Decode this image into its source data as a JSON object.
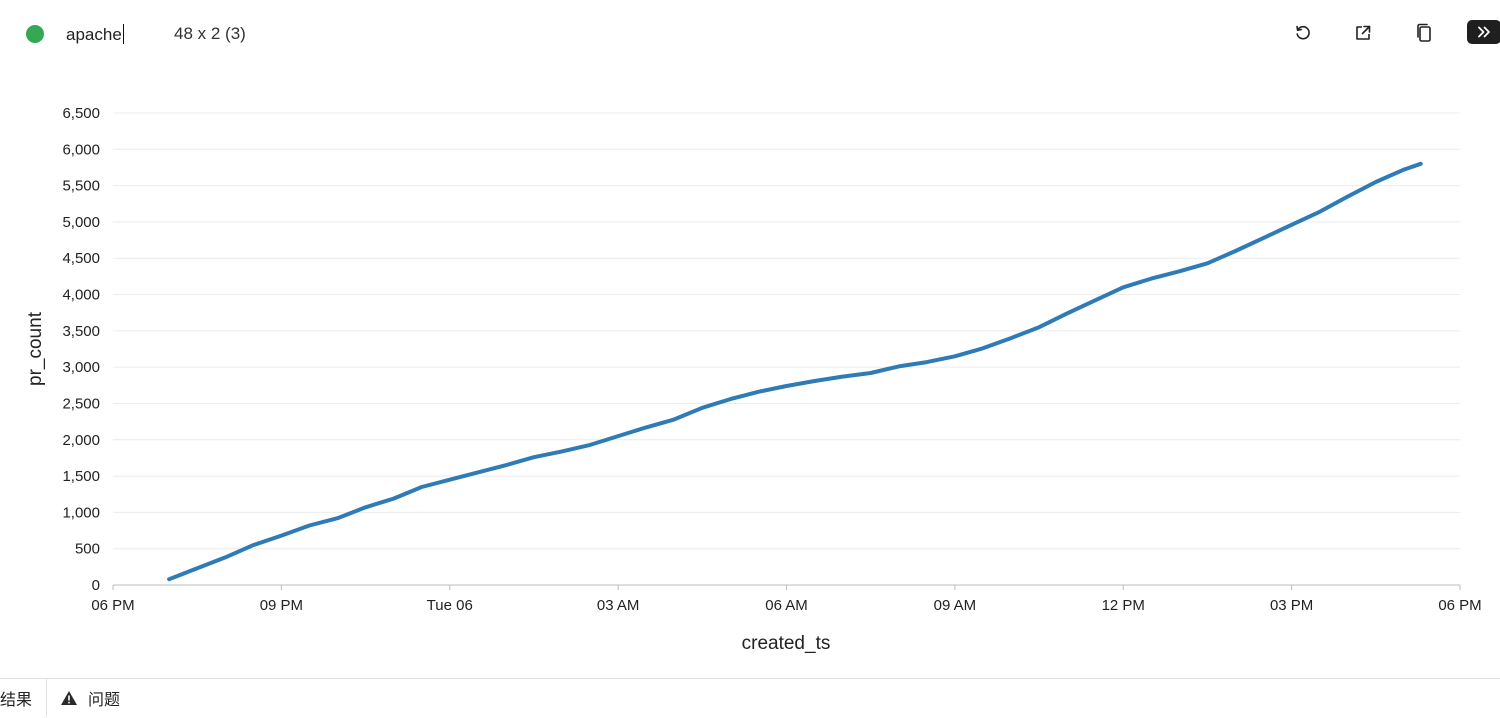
{
  "header": {
    "query_name": "apache",
    "dimensions": "48 x 2 (3)",
    "status_color": "#34a853",
    "icons": [
      "refresh-icon",
      "open-external-icon",
      "copy-icon",
      "expand-panel-icon"
    ]
  },
  "footer": {
    "tabs": [
      {
        "label": "结果",
        "icon": ""
      },
      {
        "label": "问题",
        "icon": "warning-icon"
      }
    ]
  },
  "chart_data": {
    "type": "line",
    "xlabel": "created_ts",
    "ylabel": "pr_count",
    "x_ticks": [
      "06 PM",
      "09 PM",
      "Tue 06",
      "03 AM",
      "06 AM",
      "09 AM",
      "12 PM",
      "03 PM",
      "06 PM"
    ],
    "x_domain_hours": [
      0,
      24
    ],
    "y_ticks": [
      0,
      500,
      1000,
      1500,
      2000,
      2500,
      3000,
      3500,
      4000,
      4500,
      5000,
      5500,
      6000,
      6500
    ],
    "ylim": [
      0,
      6500
    ],
    "grid": "horizontal",
    "line_color": "#2e7bb6",
    "series": [
      {
        "x_hours": [
          1.0,
          1.5,
          2.0,
          2.5,
          3.0,
          3.5,
          4.0,
          4.5,
          5.0,
          5.5,
          6.0,
          6.5,
          7.0,
          7.5,
          8.0,
          8.5,
          9.0,
          9.5,
          10.0,
          10.5,
          11.0,
          11.5,
          12.0,
          12.5,
          13.0,
          13.5,
          14.0,
          14.5,
          15.0,
          15.5,
          16.0,
          16.5,
          17.0,
          17.5,
          18.0,
          18.5,
          19.0,
          19.5,
          20.0,
          20.5,
          21.0,
          21.5,
          22.0,
          22.5,
          23.0,
          23.3
        ],
        "values": [
          80,
          230,
          380,
          550,
          680,
          820,
          920,
          1070,
          1190,
          1350,
          1450,
          1550,
          1650,
          1760,
          1840,
          1930,
          2050,
          2170,
          2280,
          2440,
          2560,
          2660,
          2740,
          2810,
          2870,
          2920,
          3010,
          3070,
          3150,
          3260,
          3400,
          3550,
          3740,
          3920,
          4100,
          4220,
          4320,
          4430,
          4600,
          4780,
          4960,
          5140,
          5350,
          5550,
          5720,
          5800
        ]
      }
    ]
  }
}
